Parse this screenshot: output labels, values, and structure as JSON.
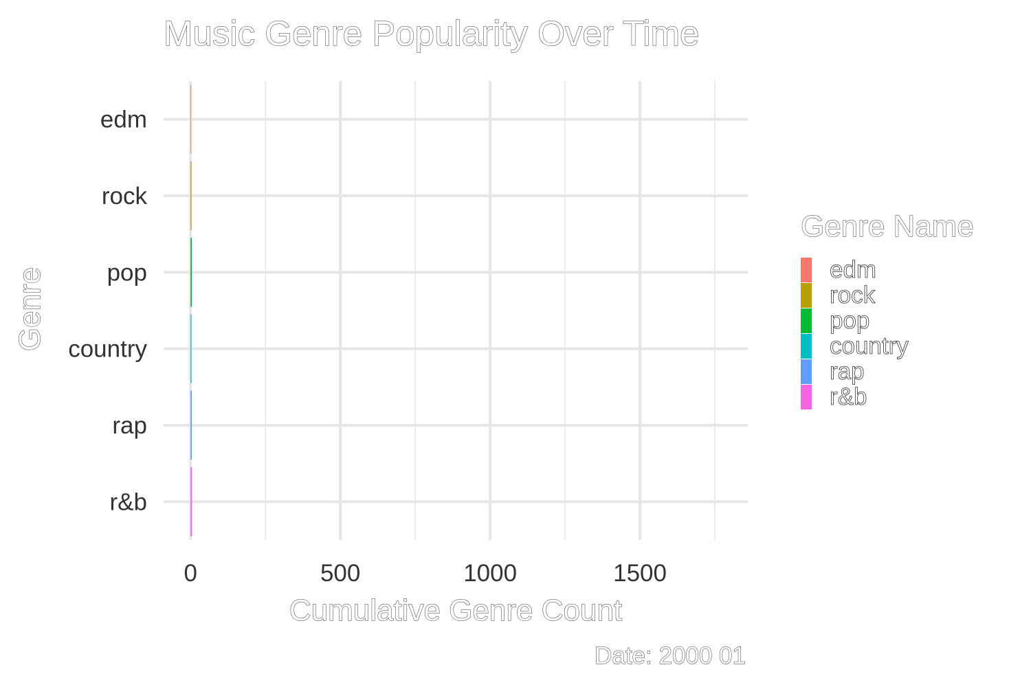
{
  "chart_data": {
    "type": "bar",
    "orientation": "horizontal",
    "title": "Music Genre Popularity Over Time",
    "xlabel": "Cumulative Genre Count",
    "ylabel": "Genre",
    "caption": "Date: 2000 01",
    "categories": [
      "edm",
      "rock",
      "pop",
      "country",
      "rap",
      "r&b"
    ],
    "values": [
      2,
      3,
      4,
      3,
      4,
      5
    ],
    "colors": [
      "#F8766D",
      "#B79F00",
      "#00BA38",
      "#00BFC4",
      "#619CFF",
      "#F564E3"
    ],
    "xlim": [
      -90,
      1860
    ],
    "xticks": [
      0,
      500,
      1000,
      1500
    ],
    "xtick_labels": [
      "0",
      "500",
      "1000",
      "1500"
    ],
    "grid": true,
    "legend": {
      "title": "Genre Name",
      "position": "right",
      "items": [
        "edm",
        "rock",
        "pop",
        "country",
        "rap",
        "r&b"
      ]
    }
  }
}
